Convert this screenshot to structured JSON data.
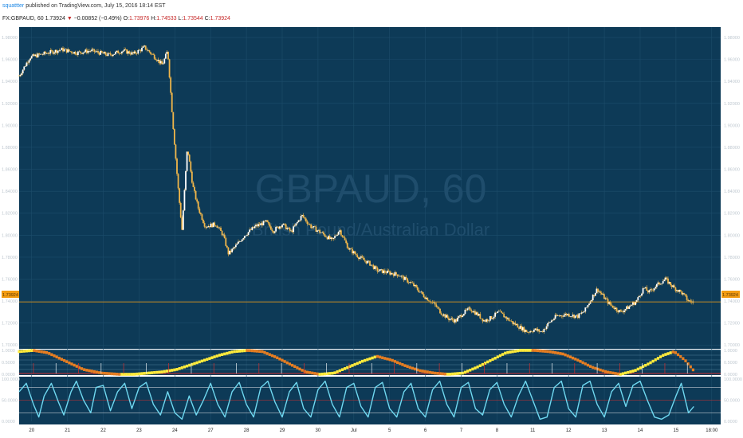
{
  "header": {
    "username": "squattter",
    "published_text": "published on TradingView.com, July 15, 2016 18:14 EST",
    "symbol": "FX:GBPAUD, 60",
    "last": "1.73924",
    "change_arrow": "▼",
    "change": "−0.00852 (−0.49%)",
    "open_label": "O:",
    "open": "1.73976",
    "high_label": "H:",
    "high": "1.74533",
    "low_label": "L:",
    "low": "1.73544",
    "close_label": "C:",
    "close": "1.73924"
  },
  "watermark": {
    "symbol": "GBPAUD, 60",
    "description": "British Pound/Australian Dollar"
  },
  "price_label": "1.73924",
  "colors": {
    "background": "#0d3a57",
    "grid": "#1d4d6b",
    "candles": "#f0b64a",
    "price_line": "#f39c12",
    "stoch_line": "#6fd8f0",
    "yellow": "#ffeb3b",
    "orange": "#e67e22",
    "red": "#d32f2f"
  },
  "chart_data": [
    {
      "type": "line",
      "title": "FX:GBPAUD, 60",
      "x_ticks": [
        "20",
        "21",
        "22",
        "23",
        "24",
        "27",
        "28",
        "29",
        "30",
        "Jul",
        "5",
        "6",
        "7",
        "8",
        "11",
        "12",
        "13",
        "14",
        "15",
        "18:00"
      ],
      "y_ticks": [
        "1.98000",
        "1.96000",
        "1.94000",
        "1.92000",
        "1.90000",
        "1.88000",
        "1.86000",
        "1.84000",
        "1.82000",
        "1.80000",
        "1.78000",
        "1.76000",
        "1.74000",
        "1.72000",
        "1.70000"
      ],
      "ylim": [
        1.698,
        1.988
      ],
      "last_price": 1.73924,
      "series": [
        {
          "values": [
            [
              0,
              1.945
            ],
            [
              0.3,
              1.962
            ],
            [
              0.8,
              1.966
            ],
            [
              1.2,
              1.969
            ],
            [
              1.6,
              1.966
            ],
            [
              2.0,
              1.968
            ],
            [
              2.5,
              1.964
            ],
            [
              2.9,
              1.968
            ],
            [
              3.2,
              1.965
            ],
            [
              3.5,
              1.971
            ],
            [
              3.8,
              1.962
            ],
            [
              4.0,
              1.955
            ],
            [
              4.15,
              1.968
            ],
            [
              4.3,
              1.9
            ],
            [
              4.45,
              1.84
            ],
            [
              4.55,
              1.805
            ],
            [
              4.7,
              1.88
            ],
            [
              4.85,
              1.845
            ],
            [
              5.0,
              1.825
            ],
            [
              5.2,
              1.808
            ],
            [
              5.5,
              1.81
            ],
            [
              5.7,
              1.8
            ],
            [
              5.85,
              1.783
            ],
            [
              6.05,
              1.79
            ],
            [
              6.3,
              1.8
            ],
            [
              6.6,
              1.808
            ],
            [
              6.9,
              1.812
            ],
            [
              7.1,
              1.804
            ],
            [
              7.35,
              1.81
            ],
            [
              7.6,
              1.803
            ],
            [
              7.9,
              1.818
            ],
            [
              8.15,
              1.808
            ],
            [
              8.45,
              1.802
            ],
            [
              8.75,
              1.795
            ],
            [
              8.95,
              1.805
            ],
            [
              9.2,
              1.788
            ],
            [
              9.5,
              1.78
            ],
            [
              9.8,
              1.774
            ],
            [
              10.0,
              1.768
            ],
            [
              10.3,
              1.766
            ],
            [
              10.6,
              1.764
            ],
            [
              11.0,
              1.755
            ],
            [
              11.3,
              1.745
            ],
            [
              11.6,
              1.737
            ],
            [
              11.8,
              1.729
            ],
            [
              12.0,
              1.724
            ],
            [
              12.2,
              1.722
            ],
            [
              12.4,
              1.729
            ],
            [
              12.6,
              1.733
            ],
            [
              12.8,
              1.728
            ],
            [
              13.0,
              1.722
            ],
            [
              13.2,
              1.725
            ],
            [
              13.4,
              1.73
            ],
            [
              13.6,
              1.725
            ],
            [
              13.8,
              1.72
            ],
            [
              14.0,
              1.716
            ],
            [
              14.2,
              1.712
            ],
            [
              14.4,
              1.714
            ],
            [
              14.6,
              1.712
            ],
            [
              14.8,
              1.72
            ],
            [
              15.0,
              1.726
            ],
            [
              15.3,
              1.728
            ],
            [
              15.6,
              1.726
            ],
            [
              15.8,
              1.731
            ],
            [
              16.0,
              1.743
            ],
            [
              16.15,
              1.751
            ],
            [
              16.3,
              1.745
            ],
            [
              16.5,
              1.737
            ],
            [
              16.8,
              1.73
            ],
            [
              17.0,
              1.734
            ],
            [
              17.25,
              1.74
            ],
            [
              17.45,
              1.752
            ],
            [
              17.6,
              1.748
            ],
            [
              17.8,
              1.754
            ],
            [
              18.05,
              1.76
            ],
            [
              18.3,
              1.752
            ],
            [
              18.5,
              1.748
            ],
            [
              18.7,
              1.74
            ],
            [
              18.85,
              1.739
            ]
          ]
        }
      ]
    },
    {
      "type": "line",
      "y_ticks": [
        "1.0000",
        "0.5000",
        "0.0000"
      ],
      "ylim": [
        0,
        1
      ],
      "series": [
        {
          "values": [
            [
              0,
              0.95
            ],
            [
              0.4,
              1.0
            ],
            [
              0.8,
              0.9
            ],
            [
              1.3,
              0.55
            ],
            [
              1.8,
              0.2
            ],
            [
              2.3,
              0.05
            ],
            [
              2.8,
              0.0
            ],
            [
              3.2,
              0.0
            ],
            [
              3.6,
              0.05
            ],
            [
              4.0,
              0.1
            ],
            [
              4.4,
              0.2
            ],
            [
              4.8,
              0.4
            ],
            [
              5.2,
              0.6
            ],
            [
              5.6,
              0.8
            ],
            [
              6.0,
              0.95
            ],
            [
              6.4,
              1.0
            ],
            [
              6.8,
              0.95
            ],
            [
              7.2,
              0.7
            ],
            [
              7.6,
              0.4
            ],
            [
              8.0,
              0.1
            ],
            [
              8.4,
              0.0
            ],
            [
              8.8,
              0.05
            ],
            [
              9.2,
              0.3
            ],
            [
              9.6,
              0.55
            ],
            [
              10.0,
              0.75
            ],
            [
              10.4,
              0.6
            ],
            [
              10.8,
              0.35
            ],
            [
              11.2,
              0.15
            ],
            [
              11.6,
              0.05
            ],
            [
              12.0,
              0.0
            ],
            [
              12.4,
              0.05
            ],
            [
              12.8,
              0.3
            ],
            [
              13.2,
              0.6
            ],
            [
              13.6,
              0.9
            ],
            [
              14.0,
              1.0
            ],
            [
              14.4,
              1.0
            ],
            [
              14.8,
              0.95
            ],
            [
              15.2,
              0.85
            ],
            [
              15.6,
              0.6
            ],
            [
              16.0,
              0.3
            ],
            [
              16.4,
              0.1
            ],
            [
              16.8,
              0.0
            ],
            [
              17.2,
              0.15
            ],
            [
              17.6,
              0.45
            ],
            [
              18.0,
              0.8
            ],
            [
              18.3,
              0.95
            ],
            [
              18.6,
              0.6
            ],
            [
              18.85,
              0.15
            ]
          ]
        }
      ]
    },
    {
      "type": "line",
      "y_ticks": [
        "100.0000",
        "50.0000",
        "0.0000"
      ],
      "ylim": [
        0,
        100
      ],
      "levels": [
        80,
        50,
        20
      ],
      "series": [
        {
          "values": [
            [
              0,
              70
            ],
            [
              0.2,
              90
            ],
            [
              0.4,
              40
            ],
            [
              0.55,
              10
            ],
            [
              0.7,
              60
            ],
            [
              0.9,
              90
            ],
            [
              1.1,
              45
            ],
            [
              1.25,
              15
            ],
            [
              1.45,
              70
            ],
            [
              1.6,
              95
            ],
            [
              1.8,
              50
            ],
            [
              2.0,
              20
            ],
            [
              2.15,
              80
            ],
            [
              2.35,
              85
            ],
            [
              2.55,
              25
            ],
            [
              2.75,
              70
            ],
            [
              2.95,
              90
            ],
            [
              3.15,
              30
            ],
            [
              3.35,
              80
            ],
            [
              3.55,
              92
            ],
            [
              3.75,
              40
            ],
            [
              3.95,
              15
            ],
            [
              4.15,
              70
            ],
            [
              4.35,
              20
            ],
            [
              4.55,
              5
            ],
            [
              4.75,
              60
            ],
            [
              4.95,
              15
            ],
            [
              5.15,
              50
            ],
            [
              5.35,
              90
            ],
            [
              5.55,
              40
            ],
            [
              5.75,
              10
            ],
            [
              5.95,
              70
            ],
            [
              6.15,
              92
            ],
            [
              6.35,
              40
            ],
            [
              6.55,
              10
            ],
            [
              6.75,
              80
            ],
            [
              6.95,
              95
            ],
            [
              7.15,
              45
            ],
            [
              7.35,
              10
            ],
            [
              7.55,
              70
            ],
            [
              7.75,
              92
            ],
            [
              7.95,
              30
            ],
            [
              8.15,
              10
            ],
            [
              8.35,
              75
            ],
            [
              8.55,
              95
            ],
            [
              8.75,
              40
            ],
            [
              8.95,
              10
            ],
            [
              9.15,
              80
            ],
            [
              9.35,
              90
            ],
            [
              9.55,
              35
            ],
            [
              9.75,
              10
            ],
            [
              9.95,
              80
            ],
            [
              10.15,
              92
            ],
            [
              10.35,
              30
            ],
            [
              10.55,
              10
            ],
            [
              10.75,
              70
            ],
            [
              10.95,
              90
            ],
            [
              11.15,
              30
            ],
            [
              11.35,
              10
            ],
            [
              11.55,
              75
            ],
            [
              11.75,
              95
            ],
            [
              11.95,
              40
            ],
            [
              12.15,
              10
            ],
            [
              12.35,
              80
            ],
            [
              12.55,
              92
            ],
            [
              12.75,
              30
            ],
            [
              12.95,
              15
            ],
            [
              13.15,
              75
            ],
            [
              13.35,
              92
            ],
            [
              13.55,
              40
            ],
            [
              13.75,
              10
            ],
            [
              13.95,
              60
            ],
            [
              14.15,
              95
            ],
            [
              14.35,
              50
            ],
            [
              14.55,
              5
            ],
            [
              14.75,
              10
            ],
            [
              14.95,
              80
            ],
            [
              15.15,
              95
            ],
            [
              15.35,
              30
            ],
            [
              15.55,
              10
            ],
            [
              15.75,
              85
            ],
            [
              15.95,
              95
            ],
            [
              16.15,
              40
            ],
            [
              16.35,
              10
            ],
            [
              16.55,
              70
            ],
            [
              16.75,
              90
            ],
            [
              16.95,
              35
            ],
            [
              17.15,
              85
            ],
            [
              17.35,
              95
            ],
            [
              17.55,
              50
            ],
            [
              17.75,
              10
            ],
            [
              17.95,
              5
            ],
            [
              18.15,
              15
            ],
            [
              18.35,
              60
            ],
            [
              18.5,
              90
            ],
            [
              18.7,
              20
            ],
            [
              18.85,
              35
            ]
          ]
        }
      ]
    }
  ]
}
